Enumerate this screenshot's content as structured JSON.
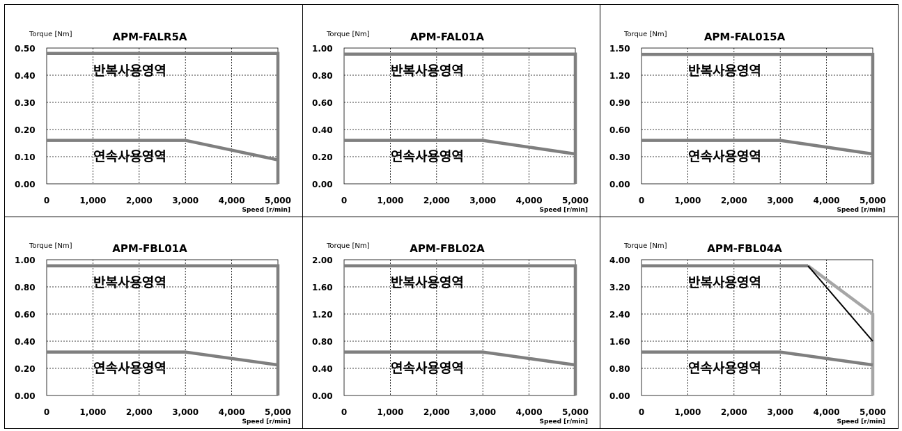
{
  "chart_data": [
    {
      "type": "line",
      "title": "APM-FALR5A",
      "ylabel": "Torque [Nm]",
      "xlabel": "Speed [r/min]",
      "x_ticks": [
        "0",
        "1,000",
        "2,000",
        "3,000",
        "4,000",
        "5,000"
      ],
      "y_ticks": [
        "0.00",
        "0.10",
        "0.20",
        "0.30",
        "0.40",
        "0.50"
      ],
      "xlim": [
        0,
        5000
      ],
      "ylim": [
        0,
        0.5
      ],
      "grid": true,
      "regions": {
        "repeated": "반복사용영역",
        "continuous": "연속사용영역"
      },
      "series": [
        {
          "role": "repeated",
          "color": "#7f7f7f",
          "points": [
            [
              0,
              0.48
            ],
            [
              5000,
              0.48
            ],
            [
              5000,
              0
            ]
          ]
        },
        {
          "role": "continuous",
          "color": "#7f7f7f",
          "points": [
            [
              0,
              0.16
            ],
            [
              3000,
              0.16
            ],
            [
              5000,
              0.088
            ]
          ]
        }
      ]
    },
    {
      "type": "line",
      "title": "APM-FAL01A",
      "ylabel": "Torque [Nm]",
      "xlabel": "Speed [r/min]",
      "x_ticks": [
        "0",
        "1,000",
        "2,000",
        "3,000",
        "4,000",
        "5,000"
      ],
      "y_ticks": [
        "0.00",
        "0.20",
        "0.40",
        "0.60",
        "0.80",
        "1.00"
      ],
      "xlim": [
        0,
        5000
      ],
      "ylim": [
        0,
        1.0
      ],
      "grid": true,
      "regions": {
        "repeated": "반복사용영역",
        "continuous": "연속사용영역"
      },
      "series": [
        {
          "role": "repeated",
          "color": "#7f7f7f",
          "points": [
            [
              0,
              0.955
            ],
            [
              5000,
              0.955
            ],
            [
              5000,
              0
            ]
          ]
        },
        {
          "role": "continuous",
          "color": "#7f7f7f",
          "points": [
            [
              0,
              0.32
            ],
            [
              3000,
              0.32
            ],
            [
              5000,
              0.22
            ]
          ]
        }
      ]
    },
    {
      "type": "line",
      "title": "APM-FAL015A",
      "ylabel": "Torque [Nm]",
      "xlabel": "Speed [r/min]",
      "x_ticks": [
        "0",
        "1,000",
        "2,000",
        "3,000",
        "4,000",
        "5,000"
      ],
      "y_ticks": [
        "0.00",
        "0.30",
        "0.60",
        "0.90",
        "1.20",
        "1.50"
      ],
      "xlim": [
        0,
        5000
      ],
      "ylim": [
        0,
        1.5
      ],
      "grid": true,
      "regions": {
        "repeated": "반복사용영역",
        "continuous": "연속사용영역"
      },
      "series": [
        {
          "role": "repeated",
          "color": "#7f7f7f",
          "points": [
            [
              0,
              1.43
            ],
            [
              5000,
              1.43
            ],
            [
              5000,
              0
            ]
          ]
        },
        {
          "role": "continuous",
          "color": "#7f7f7f",
          "points": [
            [
              0,
              0.48
            ],
            [
              3000,
              0.48
            ],
            [
              5000,
              0.33
            ]
          ]
        }
      ]
    },
    {
      "type": "line",
      "title": "APM-FBL01A",
      "ylabel": "Torque [Nm]",
      "xlabel": "Speed [r/min]",
      "x_ticks": [
        "0",
        "1,000",
        "2,000",
        "3,000",
        "4,000",
        "5,000"
      ],
      "y_ticks": [
        "0.00",
        "0.20",
        "0.40",
        "0.60",
        "0.80",
        "1.00"
      ],
      "xlim": [
        0,
        5000
      ],
      "ylim": [
        0,
        1.0
      ],
      "grid": true,
      "regions": {
        "repeated": "반복사용영역",
        "continuous": "연속사용영역"
      },
      "series": [
        {
          "role": "repeated",
          "color": "#7f7f7f",
          "points": [
            [
              0,
              0.955
            ],
            [
              5000,
              0.955
            ],
            [
              5000,
              0
            ]
          ]
        },
        {
          "role": "continuous",
          "color": "#7f7f7f",
          "points": [
            [
              0,
              0.32
            ],
            [
              3000,
              0.32
            ],
            [
              5000,
              0.225
            ]
          ]
        }
      ]
    },
    {
      "type": "line",
      "title": "APM-FBL02A",
      "ylabel": "Torque [Nm]",
      "xlabel": "Speed [r/min]",
      "x_ticks": [
        "0",
        "1,000",
        "2,000",
        "3,000",
        "4,000",
        "5,000"
      ],
      "y_ticks": [
        "0.00",
        "0.40",
        "0.80",
        "1.20",
        "1.60",
        "2.00"
      ],
      "xlim": [
        0,
        5000
      ],
      "ylim": [
        0,
        2.0
      ],
      "grid": true,
      "regions": {
        "repeated": "반복사용영역",
        "continuous": "연속사용영역"
      },
      "series": [
        {
          "role": "repeated",
          "color": "#7f7f7f",
          "points": [
            [
              0,
              1.91
            ],
            [
              5000,
              1.91
            ],
            [
              5000,
              0
            ]
          ]
        },
        {
          "role": "continuous",
          "color": "#7f7f7f",
          "points": [
            [
              0,
              0.64
            ],
            [
              3000,
              0.64
            ],
            [
              5000,
              0.45
            ]
          ]
        }
      ]
    },
    {
      "type": "line",
      "title": "APM-FBL04A",
      "ylabel": "Torque [Nm]",
      "xlabel": "Speed [r/min]",
      "x_ticks": [
        "0",
        "1,000",
        "2,000",
        "3,000",
        "4,000",
        "5,000"
      ],
      "y_ticks": [
        "0.00",
        "0.80",
        "1.60",
        "2.40",
        "3.20",
        "4.00"
      ],
      "xlim": [
        0,
        5000
      ],
      "ylim": [
        0,
        4.0
      ],
      "grid": true,
      "regions": {
        "repeated": "반복사용영역",
        "continuous": "연속사용영역"
      },
      "series": [
        {
          "role": "repeated",
          "color": "#7f7f7f",
          "points": [
            [
              0,
              3.82
            ],
            [
              3600,
              3.82
            ]
          ]
        },
        {
          "role": "repeated-high",
          "color": "#a6a6a6",
          "points": [
            [
              3600,
              3.82
            ],
            [
              5000,
              2.4
            ],
            [
              5000,
              0
            ]
          ]
        },
        {
          "role": "repeated-low",
          "color": "#000000",
          "points": [
            [
              3600,
              3.82
            ],
            [
              5000,
              1.6
            ]
          ]
        },
        {
          "role": "continuous",
          "color": "#7f7f7f",
          "points": [
            [
              0,
              1.28
            ],
            [
              3000,
              1.28
            ],
            [
              5000,
              0.9
            ]
          ]
        }
      ]
    }
  ]
}
